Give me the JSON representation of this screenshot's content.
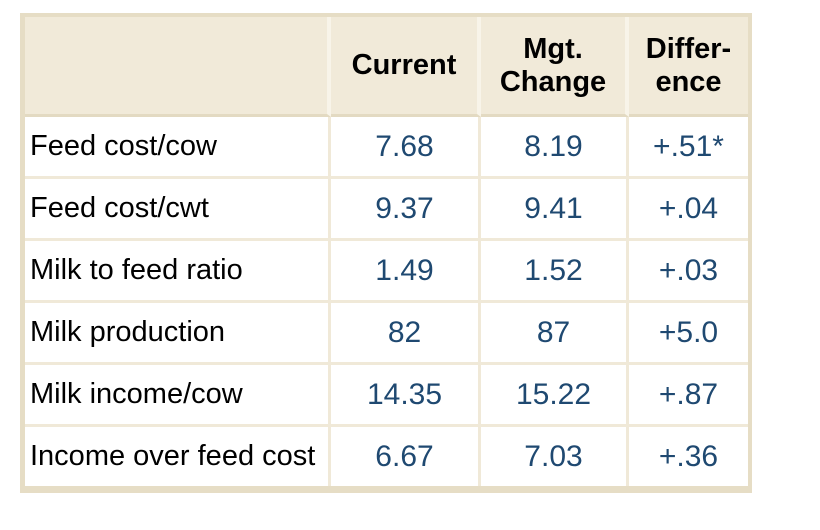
{
  "colors": {
    "header_background": "#f1ead9",
    "grid_line": "#f0e9d8",
    "outer_border": "#e6ddc5",
    "header_separator": "#f8f4e9",
    "value_text": "#1f4971",
    "label_text": "#000000"
  },
  "chart_data": {
    "type": "table",
    "columns": [
      "",
      "Current",
      "Mgt.\nChange",
      "Differ-\nence"
    ],
    "rows": [
      {
        "label": "Feed cost/cow",
        "current": "7.68",
        "mgt_change": "8.19",
        "difference": "+.51*"
      },
      {
        "label": "Feed cost/cwt",
        "current": "9.37",
        "mgt_change": "9.41",
        "difference": "+.04"
      },
      {
        "label": "Milk to feed ratio",
        "current": "1.49",
        "mgt_change": "1.52",
        "difference": "+.03"
      },
      {
        "label": "Milk production",
        "current": "82",
        "mgt_change": "87",
        "difference": "+5.0"
      },
      {
        "label": "Milk income/cow",
        "current": "14.35",
        "mgt_change": "15.22",
        "difference": "+.87"
      },
      {
        "label": "Income over feed cost",
        "current": "6.67",
        "mgt_change": "7.03",
        "difference": "+.36"
      }
    ]
  }
}
